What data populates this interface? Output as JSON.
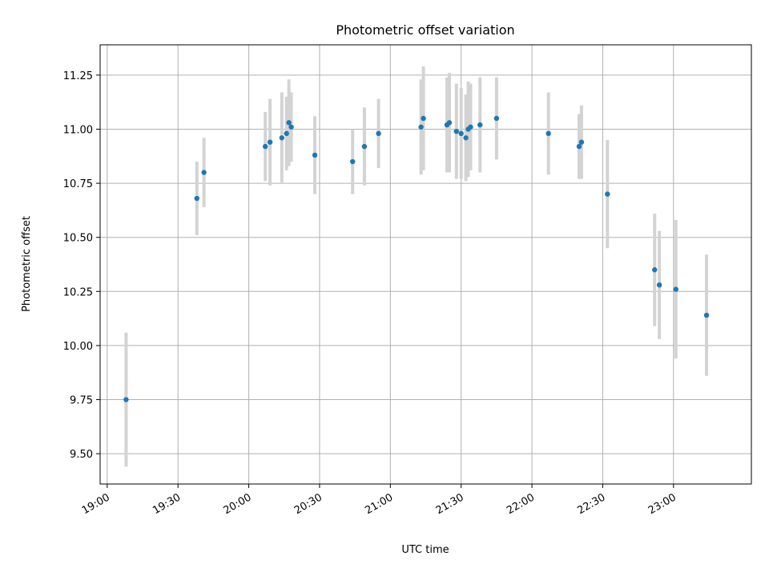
{
  "chart_data": {
    "type": "scatter",
    "title": "Photometric offset variation",
    "xlabel": "UTC time",
    "ylabel": "Photometric offset",
    "grid": true,
    "x_unit": "UTC time (HH:MM)",
    "xlim": [
      "18:57",
      "23:33"
    ],
    "ylim": [
      9.36,
      11.39
    ],
    "x_ticks": [
      "19:00",
      "19:30",
      "20:00",
      "20:30",
      "21:00",
      "21:30",
      "22:00",
      "22:30",
      "23:00"
    ],
    "y_ticks": [
      "9.50",
      "9.75",
      "10.00",
      "10.25",
      "10.50",
      "10.75",
      "11.00",
      "11.25"
    ],
    "colors": {
      "points": "#1f77b4",
      "errorbars": "#d3d3d3",
      "grid": "#b0b0b0"
    },
    "points": [
      {
        "x": "19:08",
        "y": 9.75,
        "err": 0.31
      },
      {
        "x": "19:38",
        "y": 10.68,
        "err": 0.17
      },
      {
        "x": "19:41",
        "y": 10.8,
        "err": 0.16
      },
      {
        "x": "20:07",
        "y": 10.92,
        "err": 0.16
      },
      {
        "x": "20:09",
        "y": 10.94,
        "err": 0.2
      },
      {
        "x": "20:14",
        "y": 10.96,
        "err": 0.21
      },
      {
        "x": "20:16",
        "y": 10.98,
        "err": 0.17
      },
      {
        "x": "20:17",
        "y": 11.03,
        "err": 0.2
      },
      {
        "x": "20:18",
        "y": 11.01,
        "err": 0.16
      },
      {
        "x": "20:28",
        "y": 10.88,
        "err": 0.18
      },
      {
        "x": "20:44",
        "y": 10.85,
        "err": 0.15
      },
      {
        "x": "20:49",
        "y": 10.92,
        "err": 0.18
      },
      {
        "x": "20:55",
        "y": 10.98,
        "err": 0.16
      },
      {
        "x": "21:13",
        "y": 11.01,
        "err": 0.22
      },
      {
        "x": "21:14",
        "y": 11.05,
        "err": 0.24
      },
      {
        "x": "21:24",
        "y": 11.02,
        "err": 0.22
      },
      {
        "x": "21:25",
        "y": 11.03,
        "err": 0.23
      },
      {
        "x": "21:28",
        "y": 10.99,
        "err": 0.22
      },
      {
        "x": "21:30",
        "y": 10.98,
        "err": 0.21
      },
      {
        "x": "21:32",
        "y": 10.96,
        "err": 0.2
      },
      {
        "x": "21:33",
        "y": 11.0,
        "err": 0.22
      },
      {
        "x": "21:34",
        "y": 11.01,
        "err": 0.2
      },
      {
        "x": "21:38",
        "y": 11.02,
        "err": 0.22
      },
      {
        "x": "21:45",
        "y": 11.05,
        "err": 0.19
      },
      {
        "x": "22:07",
        "y": 10.98,
        "err": 0.19
      },
      {
        "x": "22:20",
        "y": 10.92,
        "err": 0.15
      },
      {
        "x": "22:21",
        "y": 10.94,
        "err": 0.17
      },
      {
        "x": "22:32",
        "y": 10.7,
        "err": 0.25
      },
      {
        "x": "22:52",
        "y": 10.35,
        "err": 0.26
      },
      {
        "x": "22:54",
        "y": 10.28,
        "err": 0.25
      },
      {
        "x": "23:01",
        "y": 10.26,
        "err": 0.32
      },
      {
        "x": "23:14",
        "y": 10.14,
        "err": 0.28
      }
    ]
  }
}
